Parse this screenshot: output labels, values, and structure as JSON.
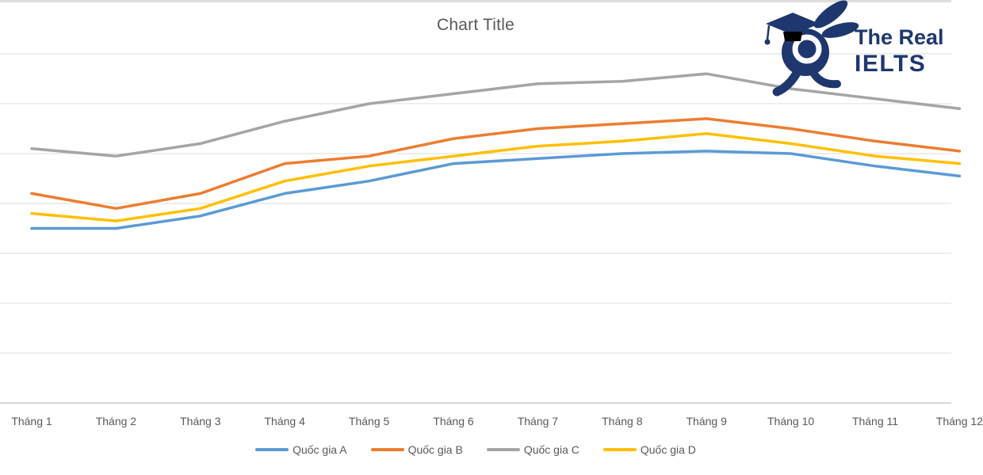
{
  "page": {
    "background": "#FFFFFF",
    "top_strip_color": "#DEDEDE"
  },
  "logo": {
    "line1": "The Real",
    "line2": "IELTS",
    "color": "#1E376E"
  },
  "chart_data": {
    "type": "line",
    "title": "Chart Title",
    "categories": [
      "Tháng 1",
      "Tháng 2",
      "Tháng 3",
      "Tháng 4",
      "Tháng 5",
      "Tháng 6",
      "Tháng 7",
      "Tháng 8",
      "Tháng 9",
      "Tháng 10",
      "Tháng 11",
      "Tháng 12"
    ],
    "series": [
      {
        "name": "Quốc gia A",
        "key": "quoc-gia-a",
        "color": "#5B9BD5",
        "values": [
          35,
          35,
          37.5,
          42,
          44.5,
          48,
          49,
          50,
          50.5,
          50,
          47.5,
          45.5
        ]
      },
      {
        "name": "Quốc gia B",
        "key": "quoc-gia-b",
        "color": "#ED7D31",
        "values": [
          42,
          39,
          42,
          48,
          49.5,
          53,
          55,
          56,
          57,
          55,
          52.5,
          50.5
        ]
      },
      {
        "name": "Quốc gia C",
        "key": "quoc-gia-c",
        "color": "#A5A5A5",
        "values": [
          51,
          49.5,
          52,
          56.5,
          60,
          62,
          64,
          64.5,
          66,
          63,
          61,
          59
        ]
      },
      {
        "name": "Quốc gia D",
        "key": "quoc-gia-d",
        "color": "#FFC000",
        "values": [
          38,
          36.5,
          39,
          44.5,
          47.5,
          49.5,
          51.5,
          52.5,
          54,
          52,
          49.5,
          48
        ]
      }
    ],
    "xlabel": "",
    "ylabel": "",
    "ylim": [
      0,
      70
    ],
    "y_axis_labels_visible": false,
    "gridlines": {
      "horizontal": true,
      "interval": 10,
      "color": "#DCDCDC"
    },
    "axis_line_color": "#C0C0C0",
    "text_color": "#595959",
    "legend_position": "bottom"
  }
}
